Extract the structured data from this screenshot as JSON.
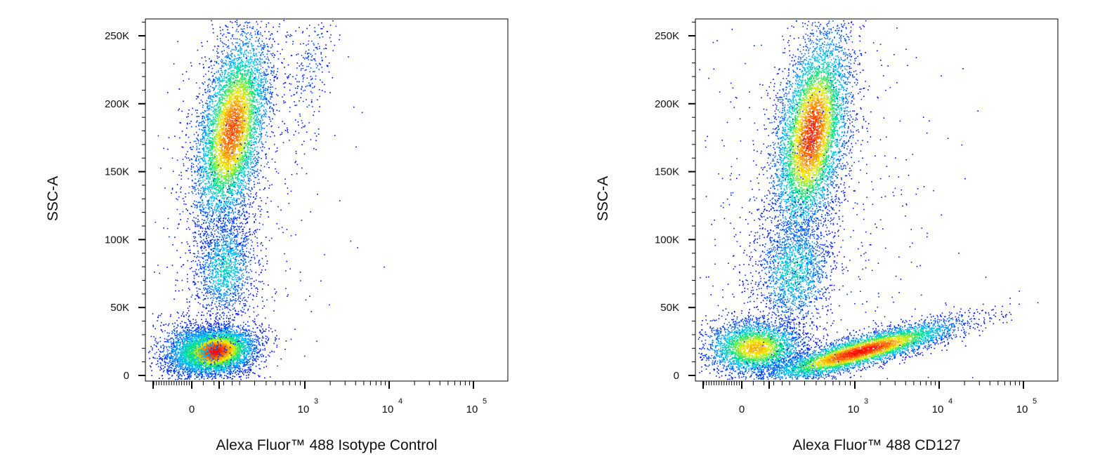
{
  "chart_data": [
    {
      "type": "scatter",
      "subtype": "flow-cytometry-density-dot-plot",
      "title": "",
      "xlabel": "Alexa Fluor™ 488 Isotype Control",
      "ylabel": "SSC-A",
      "x_scale": "biexponential",
      "x_tick_labels": [
        "0",
        "10",
        "10",
        "10"
      ],
      "x_tick_exponents": [
        "",
        "3",
        "4",
        "5"
      ],
      "y_tick_labels": [
        "0",
        "50K",
        "100K",
        "150K",
        "200K",
        "250K"
      ],
      "y_tick_values": [
        0,
        50000,
        100000,
        150000,
        200000,
        250000
      ],
      "ylim": [
        -2000,
        262000
      ],
      "color_map": [
        "#0000ff",
        "#00c0ff",
        "#00ff80",
        "#ffff00",
        "#ff8000",
        "#ff0000"
      ],
      "populations": [
        {
          "x_center": 150,
          "y_center": 18000,
          "y_spread": 9000,
          "density": "highest"
        },
        {
          "x_center": 250,
          "y_center": 175000,
          "y_spread": 38000,
          "density": "high"
        },
        {
          "x_center": 200,
          "y_center": 75000,
          "y_spread": 18000,
          "density": "low"
        },
        {
          "x_center": 1200,
          "y_center": 200000,
          "y_spread": 40000,
          "density": "sparse"
        }
      ]
    },
    {
      "type": "scatter",
      "subtype": "flow-cytometry-density-dot-plot",
      "title": "",
      "xlabel": "Alexa Fluor™ 488 CD127",
      "ylabel": "SSC-A",
      "x_scale": "biexponential",
      "x_tick_labels": [
        "0",
        "10",
        "10",
        "10"
      ],
      "x_tick_exponents": [
        "",
        "3",
        "4",
        "5"
      ],
      "y_tick_labels": [
        "0",
        "50K",
        "100K",
        "150K",
        "200K",
        "250K"
      ],
      "y_tick_values": [
        0,
        50000,
        100000,
        150000,
        200000,
        250000
      ],
      "ylim": [
        -2000,
        262000
      ],
      "color_map": [
        "#0000ff",
        "#00c0ff",
        "#00ff80",
        "#ffff00",
        "#ff8000",
        "#ff0000"
      ],
      "populations": [
        {
          "x_center": 150,
          "y_center": 22000,
          "y_spread": 9000,
          "density": "high"
        },
        {
          "x_center": 1200,
          "y_center": 17000,
          "y_spread": 7000,
          "density": "highest",
          "diagonal_to": [
            7000,
            28000
          ]
        },
        {
          "x_center": 420,
          "y_center": 170000,
          "y_spread": 38000,
          "density": "high"
        },
        {
          "x_center": 250,
          "y_center": 75000,
          "y_spread": 18000,
          "density": "low"
        }
      ]
    }
  ]
}
